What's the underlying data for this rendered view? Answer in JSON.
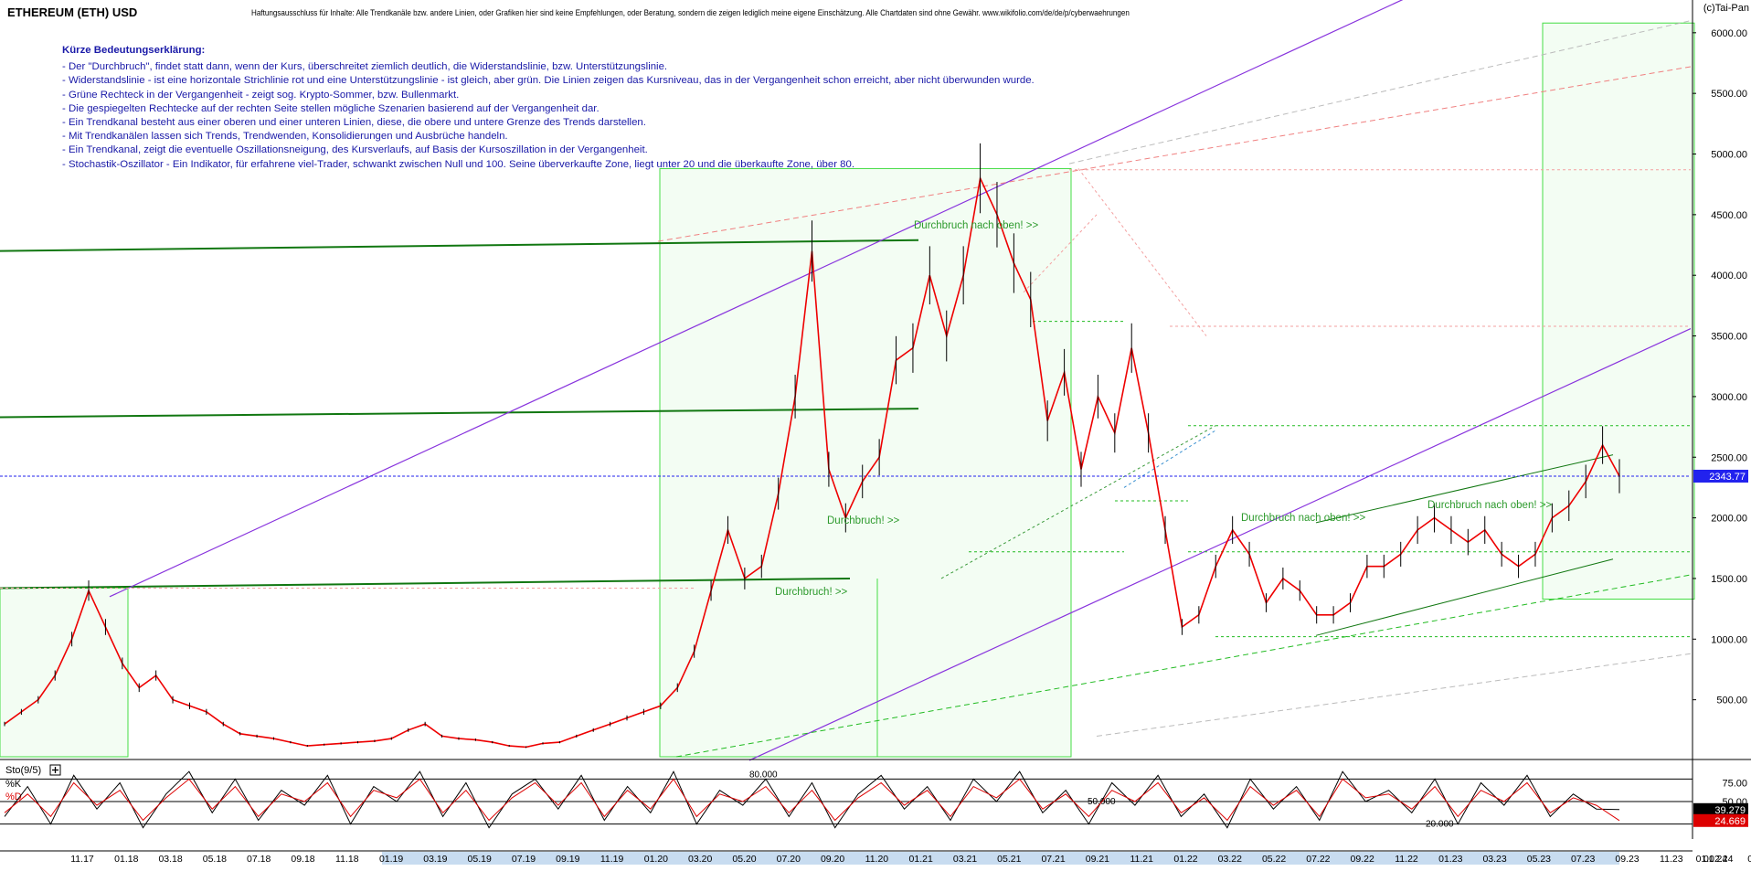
{
  "header": {
    "title": "ETHEREUM (ETH) USD",
    "disclaimer": "Haftungsausschluss für Inhalte: Alle Trendkanäle bzw. andere Linien, oder Grafiken hier sind keine Empfehlungen, oder Beratung, sondern die zeigen lediglich meine eigene Einschätzung. Alle Chartdaten sind ohne Gewähr. www.wikifolio.com/de/de/p/cyberwaehrungen",
    "brand": "(c)Tai-Pan"
  },
  "legend": {
    "heading": "Kürze Bedeutungserklärung:",
    "items": [
      "- Der \"Durchbruch\", findet statt dann, wenn der Kurs, überschreitet ziemlich deutlich, die Widerstandslinie, bzw. Unterstützungslinie.",
      "- Widerstandslinie - ist eine horizontale Strichlinie rot und eine Unterstützungslinie - ist gleich, aber grün. Die Linien zeigen das Kursniveau, das in der Vergangenheit schon erreicht, aber nicht überwunden wurde.",
      "- Grüne Rechteck in der Vergangenheit - zeigt sog. Krypto-Sommer, bzw. Bullenmarkt.",
      "- Die gespiegelten Rechtecke auf der rechten Seite stellen mögliche Szenarien basierend auf der Vergangenheit dar.",
      "- Ein Trendkanal besteht aus einer oberen und einer unteren Linien, diese, die obere und untere Grenze des Trends darstellen.",
      "- Mit Trendkanälen lassen sich Trends, Trendwenden, Konsolidierungen und Ausbrüche handeln.",
      "- Ein Trendkanal, zeigt die eventuelle Oszillationsneigung, des Kursverlaufs, auf Basis der Kursoszillation in der Vergangenheit.",
      "- Stochastik-Oszillator - Ein Indikator, für erfahrene viel-Trader, schwankt zwischen Null und 100. Seine überverkaufte Zone, liegt unter 20 und die überkaufte Zone, über 80."
    ]
  },
  "colors": {
    "price_up": "#000000",
    "price_down": "#ee0000",
    "support": "#22bb22",
    "resistance": "#ee4444",
    "trend_channel": "#8833dd",
    "green_box": "#44dd44",
    "dark_green": "#117711",
    "last_price": "#2222ee",
    "k_line": "#000000",
    "d_line": "#dd0000"
  },
  "chart_data": [
    {
      "type": "line",
      "title": "ETHEREUM (ETH) USD",
      "y_axis": {
        "ticks": [
          500,
          1000,
          1500,
          2000,
          2500,
          3000,
          3500,
          4000,
          4500,
          5000,
          5500,
          6000
        ],
        "tick_labels": [
          "500.00",
          "1000.00",
          "1500.00",
          "2000.00",
          "2500.00",
          "3000.00",
          "3500.00",
          "4000.00",
          "4500.00",
          "5000.00",
          "5500.00",
          "6000.00"
        ],
        "range": [
          30,
          6270
        ]
      },
      "x_axis": {
        "tick_labels": [
          "11.17",
          "01.18",
          "03.18",
          "05.18",
          "07.18",
          "09.18",
          "11.18",
          "01.19",
          "03.19",
          "05.19",
          "07.19",
          "09.19",
          "11.19",
          "01.20",
          "03.20",
          "05.20",
          "07.20",
          "09.20",
          "11.20",
          "01.21",
          "03.21",
          "05.21",
          "07.21",
          "09.21",
          "11.21",
          "01.22",
          "03.22",
          "05.22",
          "07.22",
          "09.22",
          "11.22",
          "01.23",
          "03.23",
          "05.23",
          "07.23",
          "09.23",
          "11.23",
          "01.24",
          "03.24",
          "01.02.24"
        ]
      },
      "series": [
        {
          "values": [
            300,
            400,
            500,
            700,
            1000,
            1400,
            1100,
            800,
            600,
            700,
            500,
            450,
            400,
            300,
            220,
            200,
            180,
            150,
            120,
            130,
            140,
            150,
            160,
            180,
            250,
            300,
            200,
            180,
            170,
            150,
            120,
            110,
            140,
            150,
            200,
            250,
            300,
            350,
            400,
            450,
            600,
            900,
            1400,
            1900,
            1500,
            1600,
            2200,
            3000,
            4200,
            2400,
            2000,
            2300,
            2500,
            3300,
            3400,
            4000,
            3500,
            4000,
            4800,
            4500,
            4100,
            3800,
            2800,
            3200,
            2400,
            3000,
            2700,
            3400,
            2700,
            1900,
            1100,
            1200,
            1600,
            1900,
            1700,
            1300,
            1500,
            1400,
            1200,
            1200,
            1300,
            1600,
            1600,
            1700,
            1900,
            2000,
            1900,
            1800,
            1900,
            1700,
            1600,
            1700,
            2000,
            2100,
            2300,
            2600,
            2343.77
          ]
        }
      ],
      "last_price": {
        "value": 2343.77,
        "label": "2343.77"
      },
      "annotations": [
        {
          "text": "Durchbruch nach oben! >>",
          "x": "02.21",
          "y": 4450
        },
        {
          "text": "Durchbruch! >>",
          "x": "05.21",
          "y": 2100
        },
        {
          "text": "Durchbruch! >>",
          "x": "02.21",
          "y": 1490
        },
        {
          "text": "Durchbruch nach oben! >>",
          "x": "10.22",
          "y": 2100
        },
        {
          "text": "Durchbruch nach oben! >>",
          "x": "05.23",
          "y": 2200
        }
      ],
      "grid": false
    },
    {
      "type": "line",
      "title": "Sto(9/5)",
      "series": [
        {
          "name": "%K",
          "values": [
            30,
            70,
            20,
            85,
            40,
            75,
            15,
            60,
            90,
            35,
            80,
            25,
            65,
            45,
            85,
            20,
            70,
            50,
            90,
            30,
            75,
            15,
            60,
            80,
            40,
            85,
            25,
            70,
            35,
            90,
            20,
            65,
            45,
            80,
            30,
            75,
            15,
            60,
            85,
            40,
            70,
            25,
            80,
            50,
            90,
            35,
            65,
            20,
            75,
            45,
            85,
            30,
            60,
            15,
            80,
            40,
            70,
            25,
            90,
            50,
            65,
            35,
            80,
            20,
            75,
            45,
            85,
            30,
            60,
            40,
            39.279
          ]
        },
        {
          "name": "%D",
          "values": [
            35,
            60,
            30,
            75,
            45,
            65,
            25,
            55,
            80,
            40,
            70,
            30,
            60,
            50,
            75,
            30,
            65,
            55,
            80,
            35,
            65,
            25,
            55,
            75,
            45,
            75,
            30,
            65,
            40,
            80,
            30,
            60,
            50,
            70,
            35,
            65,
            25,
            55,
            75,
            45,
            65,
            30,
            70,
            55,
            80,
            40,
            60,
            30,
            65,
            50,
            75,
            35,
            55,
            25,
            70,
            45,
            65,
            30,
            80,
            55,
            60,
            40,
            70,
            30,
            65,
            50,
            75,
            35,
            55,
            45,
            24.669
          ]
        }
      ],
      "y_axis": {
        "tick_labels": [
          "75.00",
          "50.00"
        ],
        "range": [
          0,
          100
        ]
      },
      "levels": [
        "80.000",
        "50.000",
        "20.000"
      ],
      "last_k": {
        "value": 39.279,
        "label": "39.279"
      },
      "last_d": {
        "value": 24.669,
        "label": "24.669"
      }
    }
  ]
}
